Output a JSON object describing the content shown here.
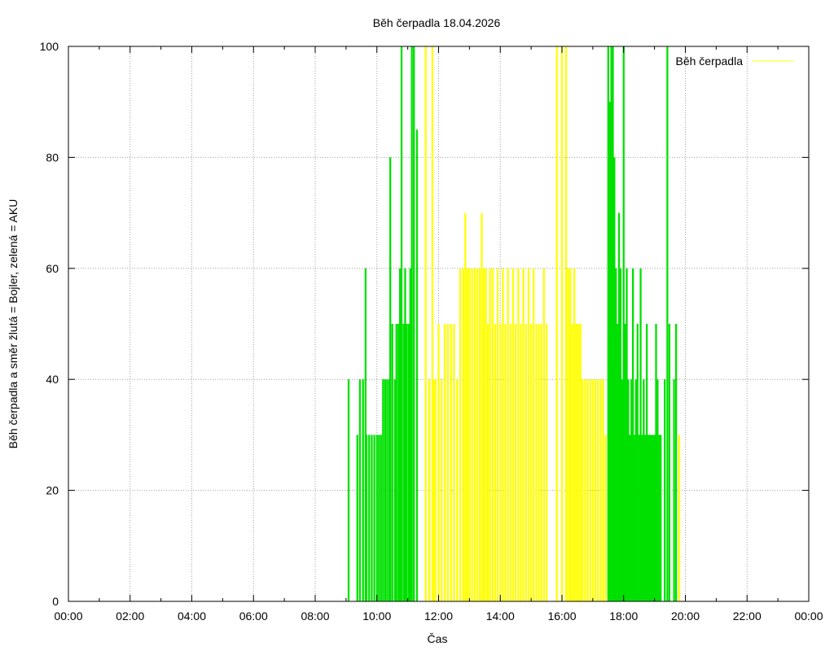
{
  "chart_data": {
    "type": "bar",
    "title": "Běh čerpadla 18.04.2026",
    "xlabel": "Čas",
    "ylabel": "Běh čerpadla a směr žlutá = Bojler, zelená = AKU",
    "xlim_hours": [
      0,
      24
    ],
    "ylim": [
      0,
      100
    ],
    "x_ticks": [
      "00:00",
      "02:00",
      "04:00",
      "06:00",
      "08:00",
      "10:00",
      "12:00",
      "14:00",
      "16:00",
      "18:00",
      "20:00",
      "22:00",
      "00:00"
    ],
    "y_ticks": [
      0,
      20,
      40,
      60,
      80,
      100
    ],
    "grid": true,
    "legend": {
      "position": "top-right",
      "label": "Běh čerpadla"
    },
    "colors": {
      "yellow": "#ffff00",
      "green": "#00e000"
    },
    "series": [
      {
        "color_key": "green",
        "values": [
          {
            "x": "09:05",
            "y": 40
          },
          {
            "x": "09:22",
            "y": 30
          },
          {
            "x": "09:27",
            "y": 40
          },
          {
            "x": "09:33",
            "y": 40
          },
          {
            "x": "09:38",
            "y": 60
          },
          {
            "x": "09:40",
            "y": 30
          },
          {
            "x": "09:45",
            "y": 30
          },
          {
            "x": "09:50",
            "y": 30
          },
          {
            "x": "09:55",
            "y": 30
          },
          {
            "x": "10:00",
            "y": 30
          },
          {
            "x": "10:04",
            "y": 30
          },
          {
            "x": "10:08",
            "y": 30
          },
          {
            "x": "10:12",
            "y": 40
          },
          {
            "x": "10:16",
            "y": 40
          },
          {
            "x": "10:20",
            "y": 40
          },
          {
            "x": "10:24",
            "y": 40
          },
          {
            "x": "10:26",
            "y": 80
          },
          {
            "x": "10:30",
            "y": 50
          },
          {
            "x": "10:35",
            "y": 40
          },
          {
            "x": "10:38",
            "y": 50
          },
          {
            "x": "10:42",
            "y": 50
          },
          {
            "x": "10:45",
            "y": 60
          },
          {
            "x": "10:48",
            "y": 100
          },
          {
            "x": "10:52",
            "y": 50
          },
          {
            "x": "10:55",
            "y": 60
          },
          {
            "x": "10:58",
            "y": 50
          },
          {
            "x": "11:02",
            "y": 50
          },
          {
            "x": "11:05",
            "y": 60
          },
          {
            "x": "11:08",
            "y": 100
          },
          {
            "x": "11:12",
            "y": 100
          },
          {
            "x": "11:18",
            "y": 85
          },
          {
            "x": "17:30",
            "y": 100
          },
          {
            "x": "17:33",
            "y": 90
          },
          {
            "x": "17:36",
            "y": 100
          },
          {
            "x": "17:39",
            "y": 100
          },
          {
            "x": "17:42",
            "y": 80
          },
          {
            "x": "17:45",
            "y": 60
          },
          {
            "x": "17:48",
            "y": 50
          },
          {
            "x": "17:51",
            "y": 70
          },
          {
            "x": "17:54",
            "y": 60
          },
          {
            "x": "17:57",
            "y": 40
          },
          {
            "x": "18:00",
            "y": 100
          },
          {
            "x": "18:03",
            "y": 50
          },
          {
            "x": "18:06",
            "y": 60
          },
          {
            "x": "18:09",
            "y": 40
          },
          {
            "x": "18:12",
            "y": 30
          },
          {
            "x": "18:15",
            "y": 40
          },
          {
            "x": "18:18",
            "y": 60
          },
          {
            "x": "18:21",
            "y": 30
          },
          {
            "x": "18:24",
            "y": 40
          },
          {
            "x": "18:27",
            "y": 50
          },
          {
            "x": "18:30",
            "y": 30
          },
          {
            "x": "18:33",
            "y": 60
          },
          {
            "x": "18:36",
            "y": 30
          },
          {
            "x": "18:39",
            "y": 40
          },
          {
            "x": "18:42",
            "y": 30
          },
          {
            "x": "18:45",
            "y": 50
          },
          {
            "x": "18:48",
            "y": 30
          },
          {
            "x": "18:51",
            "y": 30
          },
          {
            "x": "18:54",
            "y": 30
          },
          {
            "x": "18:57",
            "y": 30
          },
          {
            "x": "19:00",
            "y": 30
          },
          {
            "x": "19:03",
            "y": 50
          },
          {
            "x": "19:06",
            "y": 40
          },
          {
            "x": "19:09",
            "y": 30
          },
          {
            "x": "19:12",
            "y": 30
          },
          {
            "x": "19:20",
            "y": 40
          },
          {
            "x": "19:25",
            "y": 100
          },
          {
            "x": "19:29",
            "y": 50
          },
          {
            "x": "19:38",
            "y": 40
          },
          {
            "x": "19:42",
            "y": 50
          }
        ]
      },
      {
        "color_key": "yellow",
        "values": [
          {
            "x": "11:35",
            "y": 100
          },
          {
            "x": "11:42",
            "y": 40
          },
          {
            "x": "11:48",
            "y": 100
          },
          {
            "x": "11:50",
            "y": 40
          },
          {
            "x": "11:54",
            "y": 40
          },
          {
            "x": "12:00",
            "y": 50
          },
          {
            "x": "12:06",
            "y": 40
          },
          {
            "x": "12:12",
            "y": 50
          },
          {
            "x": "12:18",
            "y": 50
          },
          {
            "x": "12:24",
            "y": 50
          },
          {
            "x": "12:30",
            "y": 50
          },
          {
            "x": "12:36",
            "y": 40
          },
          {
            "x": "12:42",
            "y": 60
          },
          {
            "x": "12:48",
            "y": 60
          },
          {
            "x": "12:52",
            "y": 70
          },
          {
            "x": "12:56",
            "y": 60
          },
          {
            "x": "13:00",
            "y": 60
          },
          {
            "x": "13:05",
            "y": 60
          },
          {
            "x": "13:10",
            "y": 60
          },
          {
            "x": "13:15",
            "y": 60
          },
          {
            "x": "13:20",
            "y": 60
          },
          {
            "x": "13:24",
            "y": 70
          },
          {
            "x": "13:28",
            "y": 60
          },
          {
            "x": "13:32",
            "y": 60
          },
          {
            "x": "13:36",
            "y": 50
          },
          {
            "x": "13:40",
            "y": 60
          },
          {
            "x": "13:45",
            "y": 60
          },
          {
            "x": "13:50",
            "y": 50
          },
          {
            "x": "13:55",
            "y": 60
          },
          {
            "x": "14:00",
            "y": 50
          },
          {
            "x": "14:05",
            "y": 60
          },
          {
            "x": "14:10",
            "y": 50
          },
          {
            "x": "14:15",
            "y": 60
          },
          {
            "x": "14:20",
            "y": 50
          },
          {
            "x": "14:25",
            "y": 60
          },
          {
            "x": "14:30",
            "y": 50
          },
          {
            "x": "14:35",
            "y": 60
          },
          {
            "x": "14:40",
            "y": 50
          },
          {
            "x": "14:45",
            "y": 60
          },
          {
            "x": "14:50",
            "y": 50
          },
          {
            "x": "14:55",
            "y": 60
          },
          {
            "x": "15:00",
            "y": 50
          },
          {
            "x": "15:05",
            "y": 60
          },
          {
            "x": "15:10",
            "y": 50
          },
          {
            "x": "15:15",
            "y": 50
          },
          {
            "x": "15:20",
            "y": 50
          },
          {
            "x": "15:25",
            "y": 60
          },
          {
            "x": "15:30",
            "y": 50
          },
          {
            "x": "15:50",
            "y": 100
          },
          {
            "x": "16:00",
            "y": 100
          },
          {
            "x": "16:08",
            "y": 100
          },
          {
            "x": "16:12",
            "y": 60
          },
          {
            "x": "16:16",
            "y": 60
          },
          {
            "x": "16:20",
            "y": 50
          },
          {
            "x": "16:24",
            "y": 60
          },
          {
            "x": "16:28",
            "y": 50
          },
          {
            "x": "16:32",
            "y": 50
          },
          {
            "x": "16:36",
            "y": 50
          },
          {
            "x": "16:40",
            "y": 40
          },
          {
            "x": "16:45",
            "y": 40
          },
          {
            "x": "16:50",
            "y": 40
          },
          {
            "x": "16:55",
            "y": 40
          },
          {
            "x": "17:00",
            "y": 40
          },
          {
            "x": "17:05",
            "y": 40
          },
          {
            "x": "17:10",
            "y": 40
          },
          {
            "x": "17:15",
            "y": 40
          },
          {
            "x": "17:20",
            "y": 40
          },
          {
            "x": "17:25",
            "y": 30
          },
          {
            "x": "19:48",
            "y": 30
          }
        ]
      }
    ]
  }
}
